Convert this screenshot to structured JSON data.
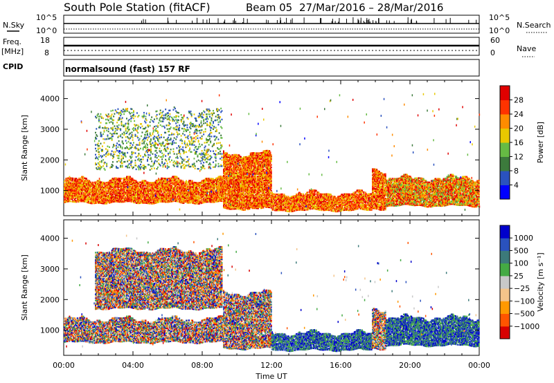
{
  "header": {
    "station": "South Pole Station (fitACF)",
    "beam": "Beam 05",
    "dates": "27/Mar/2016 – 28/Mar/2016"
  },
  "panels": {
    "nsky": {
      "label": "N.Sky",
      "ticks": [
        "10^5",
        "10^0"
      ]
    },
    "nsearch": {
      "label": "N.Search",
      "ticks": [
        "10^5",
        "10^0"
      ]
    },
    "freq": {
      "label1": "Freq.",
      "label2": "[MHz]",
      "ticks": [
        "18",
        "8"
      ]
    },
    "nave": {
      "label": "Nave",
      "ticks": [
        "60",
        "0"
      ]
    },
    "cpid": {
      "label": "CPID",
      "text": "normalsound (fast) 157 RF"
    }
  },
  "chart_data": [
    {
      "type": "heatmap",
      "name": "Power",
      "xlabel": "",
      "ylabel": "Slant Range [km]",
      "xlim": [
        0,
        24
      ],
      "ylim": [
        180,
        4600
      ],
      "ytick_labels": [
        "1000",
        "2000",
        "3000",
        "4000"
      ],
      "colorbar": {
        "label": "Power [dB]",
        "tick_labels": [
          "28",
          "24",
          "20",
          "16",
          "12",
          "8",
          "4"
        ],
        "colors": [
          "#0000ff",
          "#2a52be",
          "#3c7a3c",
          "#66bb44",
          "#e8c800",
          "#ff8c00",
          "#ff3300",
          "#e00000"
        ]
      },
      "echo_bands": [
        {
          "t0": 0.0,
          "t1": 9.2,
          "r0": 600,
          "r1": 1350,
          "level": "high"
        },
        {
          "t0": 1.8,
          "t1": 9.1,
          "r0": 1700,
          "r1": 3600,
          "level": "low"
        },
        {
          "t0": 9.2,
          "t1": 12.0,
          "r0": 400,
          "r1": 2200,
          "level": "high"
        },
        {
          "t0": 12.0,
          "t1": 17.8,
          "r0": 350,
          "r1": 900,
          "level": "high"
        },
        {
          "t0": 17.8,
          "t1": 18.6,
          "r0": 400,
          "r1": 1700,
          "level": "high"
        },
        {
          "t0": 18.6,
          "t1": 24.0,
          "r0": 500,
          "r1": 1400,
          "level": "mid"
        }
      ]
    },
    {
      "type": "heatmap",
      "name": "Velocity",
      "xlabel": "Time UT",
      "ylabel": "Slant Range [km]",
      "xlim": [
        0,
        24
      ],
      "ylim": [
        180,
        4600
      ],
      "xtick_labels": [
        "00:00",
        "04:00",
        "08:00",
        "12:00",
        "16:00",
        "20:00",
        "00:00"
      ],
      "ytick_labels": [
        "1000",
        "2000",
        "3000",
        "4000"
      ],
      "colorbar": {
        "label": "Velocity [m s⁻¹]",
        "tick_labels": [
          "1000",
          "500",
          "100",
          "25",
          "−25",
          "−100",
          "−500",
          "−1000"
        ],
        "colors": [
          "#d80000",
          "#ff5500",
          "#ff9900",
          "#f4c48a",
          "#c8c8c8",
          "#44aa44",
          "#3c7a7a",
          "#2a52be",
          "#0000cc"
        ]
      },
      "echo_bands": [
        {
          "t0": 0.0,
          "t1": 9.2,
          "r0": 600,
          "r1": 1350,
          "level": "mixed"
        },
        {
          "t0": 1.8,
          "t1": 9.1,
          "r0": 1700,
          "r1": 3600,
          "level": "mixed"
        },
        {
          "t0": 9.2,
          "t1": 12.0,
          "r0": 400,
          "r1": 2200,
          "level": "mixed"
        },
        {
          "t0": 12.0,
          "t1": 17.8,
          "r0": 350,
          "r1": 900,
          "level": "blue"
        },
        {
          "t0": 17.8,
          "t1": 18.6,
          "r0": 400,
          "r1": 1700,
          "level": "mixed"
        },
        {
          "t0": 18.6,
          "t1": 24.0,
          "r0": 500,
          "r1": 1400,
          "level": "blue"
        }
      ]
    }
  ]
}
